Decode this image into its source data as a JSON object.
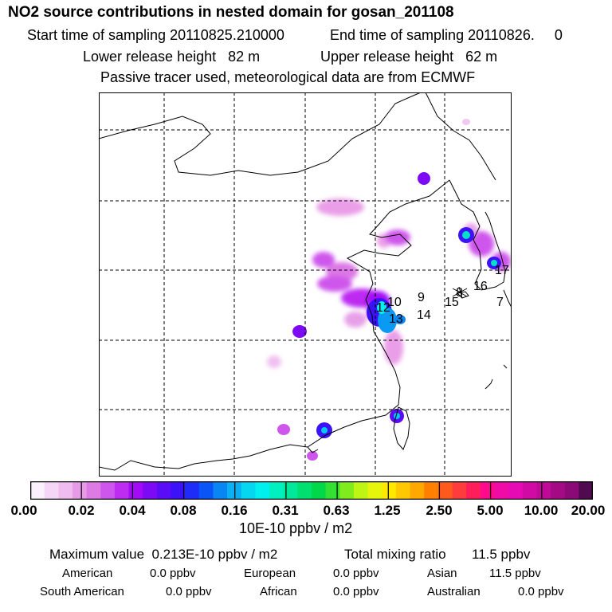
{
  "header": {
    "title": "NO2 source contributions in nested domain for gosan_201108",
    "start_label": "Start time of sampling 20110825.210000",
    "end_label": "End time of sampling 20110826.     0",
    "lower_label": "Lower release height   82 m",
    "upper_label": "Upper release height   62 m",
    "tracer_note": "Passive tracer used, meteorological data are from ECMWF"
  },
  "map": {
    "receptor_labels": [
      "9",
      "10",
      "12",
      "13",
      "14",
      "8",
      "15",
      "16",
      "17",
      "7"
    ]
  },
  "colorbar": {
    "colors": [
      "#fbf0fb",
      "#f6d6f6",
      "#f0bcf0",
      "#e79be7",
      "#de7ae4",
      "#cf56ec",
      "#be2cf2",
      "#a20af8",
      "#7d0af5",
      "#5a0cf6",
      "#3c12f8",
      "#1e2cfa",
      "#0a55f8",
      "#0a85f4",
      "#0ab0f2",
      "#05d7f0",
      "#00f0f0",
      "#00f0c0",
      "#00e89a",
      "#00e070",
      "#00d84a",
      "#33e033",
      "#80ec1e",
      "#bff514",
      "#e6f50a",
      "#ffe800",
      "#ffc800",
      "#ffa800",
      "#ff8000",
      "#ff5a1e",
      "#ff3c3c",
      "#ff1e5a",
      "#ff0a8c",
      "#f00aa6",
      "#e60ab4",
      "#d20aa5",
      "#be0a96",
      "#a50a85",
      "#8c0a78",
      "#500a50"
    ],
    "ticks": [
      "0.00",
      "0.02",
      "0.04",
      "0.08",
      "0.16",
      "0.31",
      "0.63",
      "1.25",
      "2.50",
      "5.00",
      "10.00",
      "20.00"
    ],
    "units": "10E-10 ppbv / m2"
  },
  "summary": {
    "max_label": "Maximum value  0.213E-10 ppbv / m2",
    "total_label": "Total mixing ratio",
    "total_value": "11.5 ppbv",
    "sources": [
      {
        "name": "American",
        "value": "0.0 ppbv"
      },
      {
        "name": "European",
        "value": "0.0 ppbv"
      },
      {
        "name": "Asian",
        "value": "11.5 ppbv"
      },
      {
        "name": "South American",
        "value": "0.0 ppbv"
      },
      {
        "name": "African",
        "value": "0.0 ppbv"
      },
      {
        "name": "Australian",
        "value": "0.0 ppbv"
      }
    ]
  }
}
